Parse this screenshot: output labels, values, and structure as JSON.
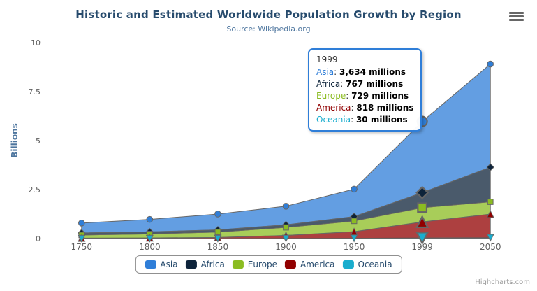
{
  "chart_data": {
    "type": "area",
    "stacking": "normal",
    "title": "Historic and Estimated Worldwide Population Growth by Region",
    "subtitle": "Source: Wikipedia.org",
    "categories": [
      "1750",
      "1800",
      "1850",
      "1900",
      "1950",
      "1999",
      "2050"
    ],
    "unit": "millions (y axis shown in billions)",
    "series": [
      {
        "name": "Asia",
        "color": "#2f7ed8",
        "marker": "circle",
        "data": [
          502,
          635,
          809,
          947,
          1402,
          3634,
          5268
        ]
      },
      {
        "name": "Africa",
        "color": "#0d233a",
        "marker": "diamond",
        "data": [
          106,
          107,
          111,
          133,
          221,
          767,
          1766
        ]
      },
      {
        "name": "Europe",
        "color": "#8bbc21",
        "marker": "square",
        "data": [
          163,
          203,
          276,
          408,
          547,
          729,
          628
        ]
      },
      {
        "name": "America",
        "color": "#910000",
        "marker": "triangle",
        "data": [
          18,
          31,
          54,
          156,
          339,
          818,
          1201
        ]
      },
      {
        "name": "Oceania",
        "color": "#1aadce",
        "marker": "triangle-down",
        "data": [
          2,
          2,
          2,
          6,
          13,
          30,
          46
        ]
      }
    ],
    "stack_bottom_to_top": [
      "Oceania",
      "America",
      "Europe",
      "Africa",
      "Asia"
    ],
    "xlabel": "",
    "ylabel": "Billions",
    "yticks": [
      0,
      2.5,
      5,
      7.5,
      10
    ],
    "ylim": [
      0,
      10
    ],
    "grid": true,
    "legend_position": "bottom",
    "hover": {
      "category_index": 5,
      "category": "1999"
    }
  },
  "tooltip": {
    "header": "1999",
    "border_color": "#2f7ed8",
    "rows": [
      {
        "name": "Asia",
        "color": "#2f7ed8",
        "value": "3,634 millions"
      },
      {
        "name": "Africa",
        "color": "#0d233a",
        "value": "767 millions"
      },
      {
        "name": "Europe",
        "color": "#8bbc21",
        "value": "729 millions"
      },
      {
        "name": "America",
        "color": "#910000",
        "value": "818 millions"
      },
      {
        "name": "Oceania",
        "color": "#1aadce",
        "value": "30 millions"
      }
    ]
  },
  "credits": "Highcharts.com",
  "style": {
    "grid_color": "#d6d6d6",
    "axis_line_color": "#c0d0e0",
    "series_line_color": "#666666",
    "fill_opacity": 0.75
  }
}
